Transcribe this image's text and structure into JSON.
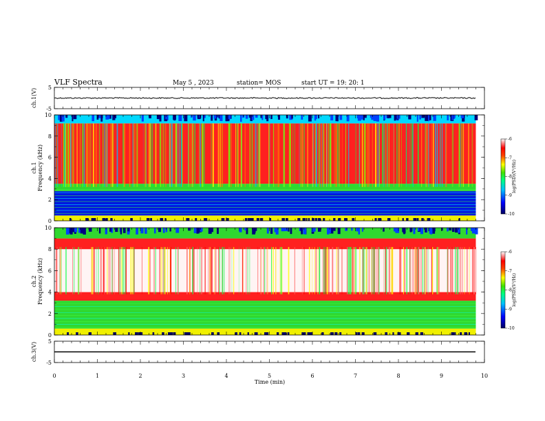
{
  "header": {
    "title": "VLF Spectra",
    "date": "May 5 , 2023",
    "station": "station= MOS",
    "start": "start  UT =   19: 20: 1"
  },
  "colors": {
    "low": "#000080",
    "mid_low": "#0040ff",
    "mid": "#00ffff",
    "mid_high": "#40e000",
    "high": "#ffff00",
    "higher": "#ff0000",
    "max": "#ffffff"
  },
  "chart_data": [
    {
      "type": "line",
      "name": "ch1-waveform",
      "ylabel": "ch.1(V)",
      "ylim": [
        -5,
        5
      ],
      "yticks": [
        "5",
        "-5"
      ],
      "x": [
        0,
        9.8
      ],
      "values": [
        0,
        0
      ]
    },
    {
      "type": "heatmap",
      "name": "ch1-spectrogram",
      "ylabel": "ch.1\nFrequency (kHz)",
      "ylabel_lines": [
        "ch.1",
        "Frequency (kHz)"
      ],
      "ylim": [
        0,
        10
      ],
      "yticks": [
        "0",
        "2",
        "4",
        "6",
        "8",
        "10"
      ],
      "xlim": [
        0,
        10
      ],
      "data_extent_x": [
        0,
        9.8
      ],
      "bands": [
        {
          "from": 0,
          "to": 0.5,
          "level": "yellow"
        },
        {
          "from": 0.5,
          "to": 2.8,
          "level": "blue"
        },
        {
          "from": 2.8,
          "to": 3.5,
          "level": "green"
        },
        {
          "from": 3.5,
          "to": 9.2,
          "level": "red"
        },
        {
          "from": 9.2,
          "to": 10,
          "level": "cyan"
        }
      ],
      "colorbar": {
        "label": "log(PSD)(V²/Hz)",
        "min": -10,
        "max": -6,
        "ticks": [
          "-6",
          "-7",
          "-8",
          "-9",
          "-10"
        ]
      }
    },
    {
      "type": "heatmap",
      "name": "ch2-spectrogram",
      "ylabel": "ch.2\nFrequency (kHz)",
      "ylabel_lines": [
        "ch.2",
        "Frequency (kHz)"
      ],
      "ylim": [
        0,
        10
      ],
      "yticks": [
        "0",
        "2",
        "4",
        "6",
        "8",
        "10"
      ],
      "xlim": [
        0,
        10
      ],
      "data_extent_x": [
        0,
        9.8
      ],
      "bands": [
        {
          "from": 0,
          "to": 0.6,
          "level": "yellow"
        },
        {
          "from": 0.6,
          "to": 3.2,
          "level": "green"
        },
        {
          "from": 3.2,
          "to": 4.0,
          "level": "red"
        },
        {
          "from": 4.0,
          "to": 8.0,
          "level": "white"
        },
        {
          "from": 8.0,
          "to": 9.0,
          "level": "red"
        },
        {
          "from": 9.0,
          "to": 10,
          "level": "green"
        }
      ],
      "colorbar": {
        "label": "log(PSD)(V²/Hz)",
        "min": -10,
        "max": -6,
        "ticks": [
          "-6",
          "-7",
          "-8",
          "-9",
          "-10"
        ]
      }
    },
    {
      "type": "line",
      "name": "ch3-waveform",
      "ylabel": "ch.3(V)",
      "ylim": [
        -5,
        5
      ],
      "yticks": [
        "5",
        "-5"
      ],
      "x": [
        0,
        9.8
      ],
      "values": [
        0,
        0
      ]
    }
  ],
  "xaxis": {
    "label": "Time (min)",
    "range": [
      0,
      10
    ],
    "ticks": [
      "0",
      "1",
      "2",
      "3",
      "4",
      "5",
      "6",
      "7",
      "8",
      "9",
      "10"
    ]
  }
}
